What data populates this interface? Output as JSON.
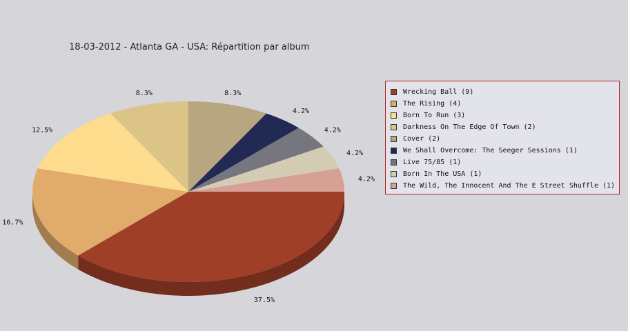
{
  "chart_data": {
    "type": "pie",
    "title": "18-03-2012 - Atlanta GA - USA:  Répartition par album",
    "slices": [
      {
        "label": "Wrecking Ball (9)",
        "value": 9,
        "percent_label": "37.5%",
        "color": "#a03f28"
      },
      {
        "label": "The Rising (4)",
        "value": 4,
        "percent_label": "16.7%",
        "color": "#e1ab6c"
      },
      {
        "label": "Born To Run (3)",
        "value": 3,
        "percent_label": "12.5%",
        "color": "#fedc8e"
      },
      {
        "label": "Darkness On The Edge Of Town (2)",
        "value": 2,
        "percent_label": "8.3%",
        "color": "#dcc489"
      },
      {
        "label": "Cover (2)",
        "value": 2,
        "percent_label": "8.3%",
        "color": "#b7a67f"
      },
      {
        "label": "We Shall Overcome: The Seeger Sessions (1)",
        "value": 1,
        "percent_label": "4.2%",
        "color": "#202a54"
      },
      {
        "label": "Live 75/85 (1)",
        "value": 1,
        "percent_label": "4.2%",
        "color": "#76767f"
      },
      {
        "label": "Born In The USA (1)",
        "value": 1,
        "percent_label": "4.2%",
        "color": "#d4cbb4"
      },
      {
        "label": "The Wild, The Innocent And The E Street Shuffle (1)",
        "value": 1,
        "percent_label": "4.2%",
        "color": "#d6a095"
      }
    ],
    "legend_position": "right"
  }
}
